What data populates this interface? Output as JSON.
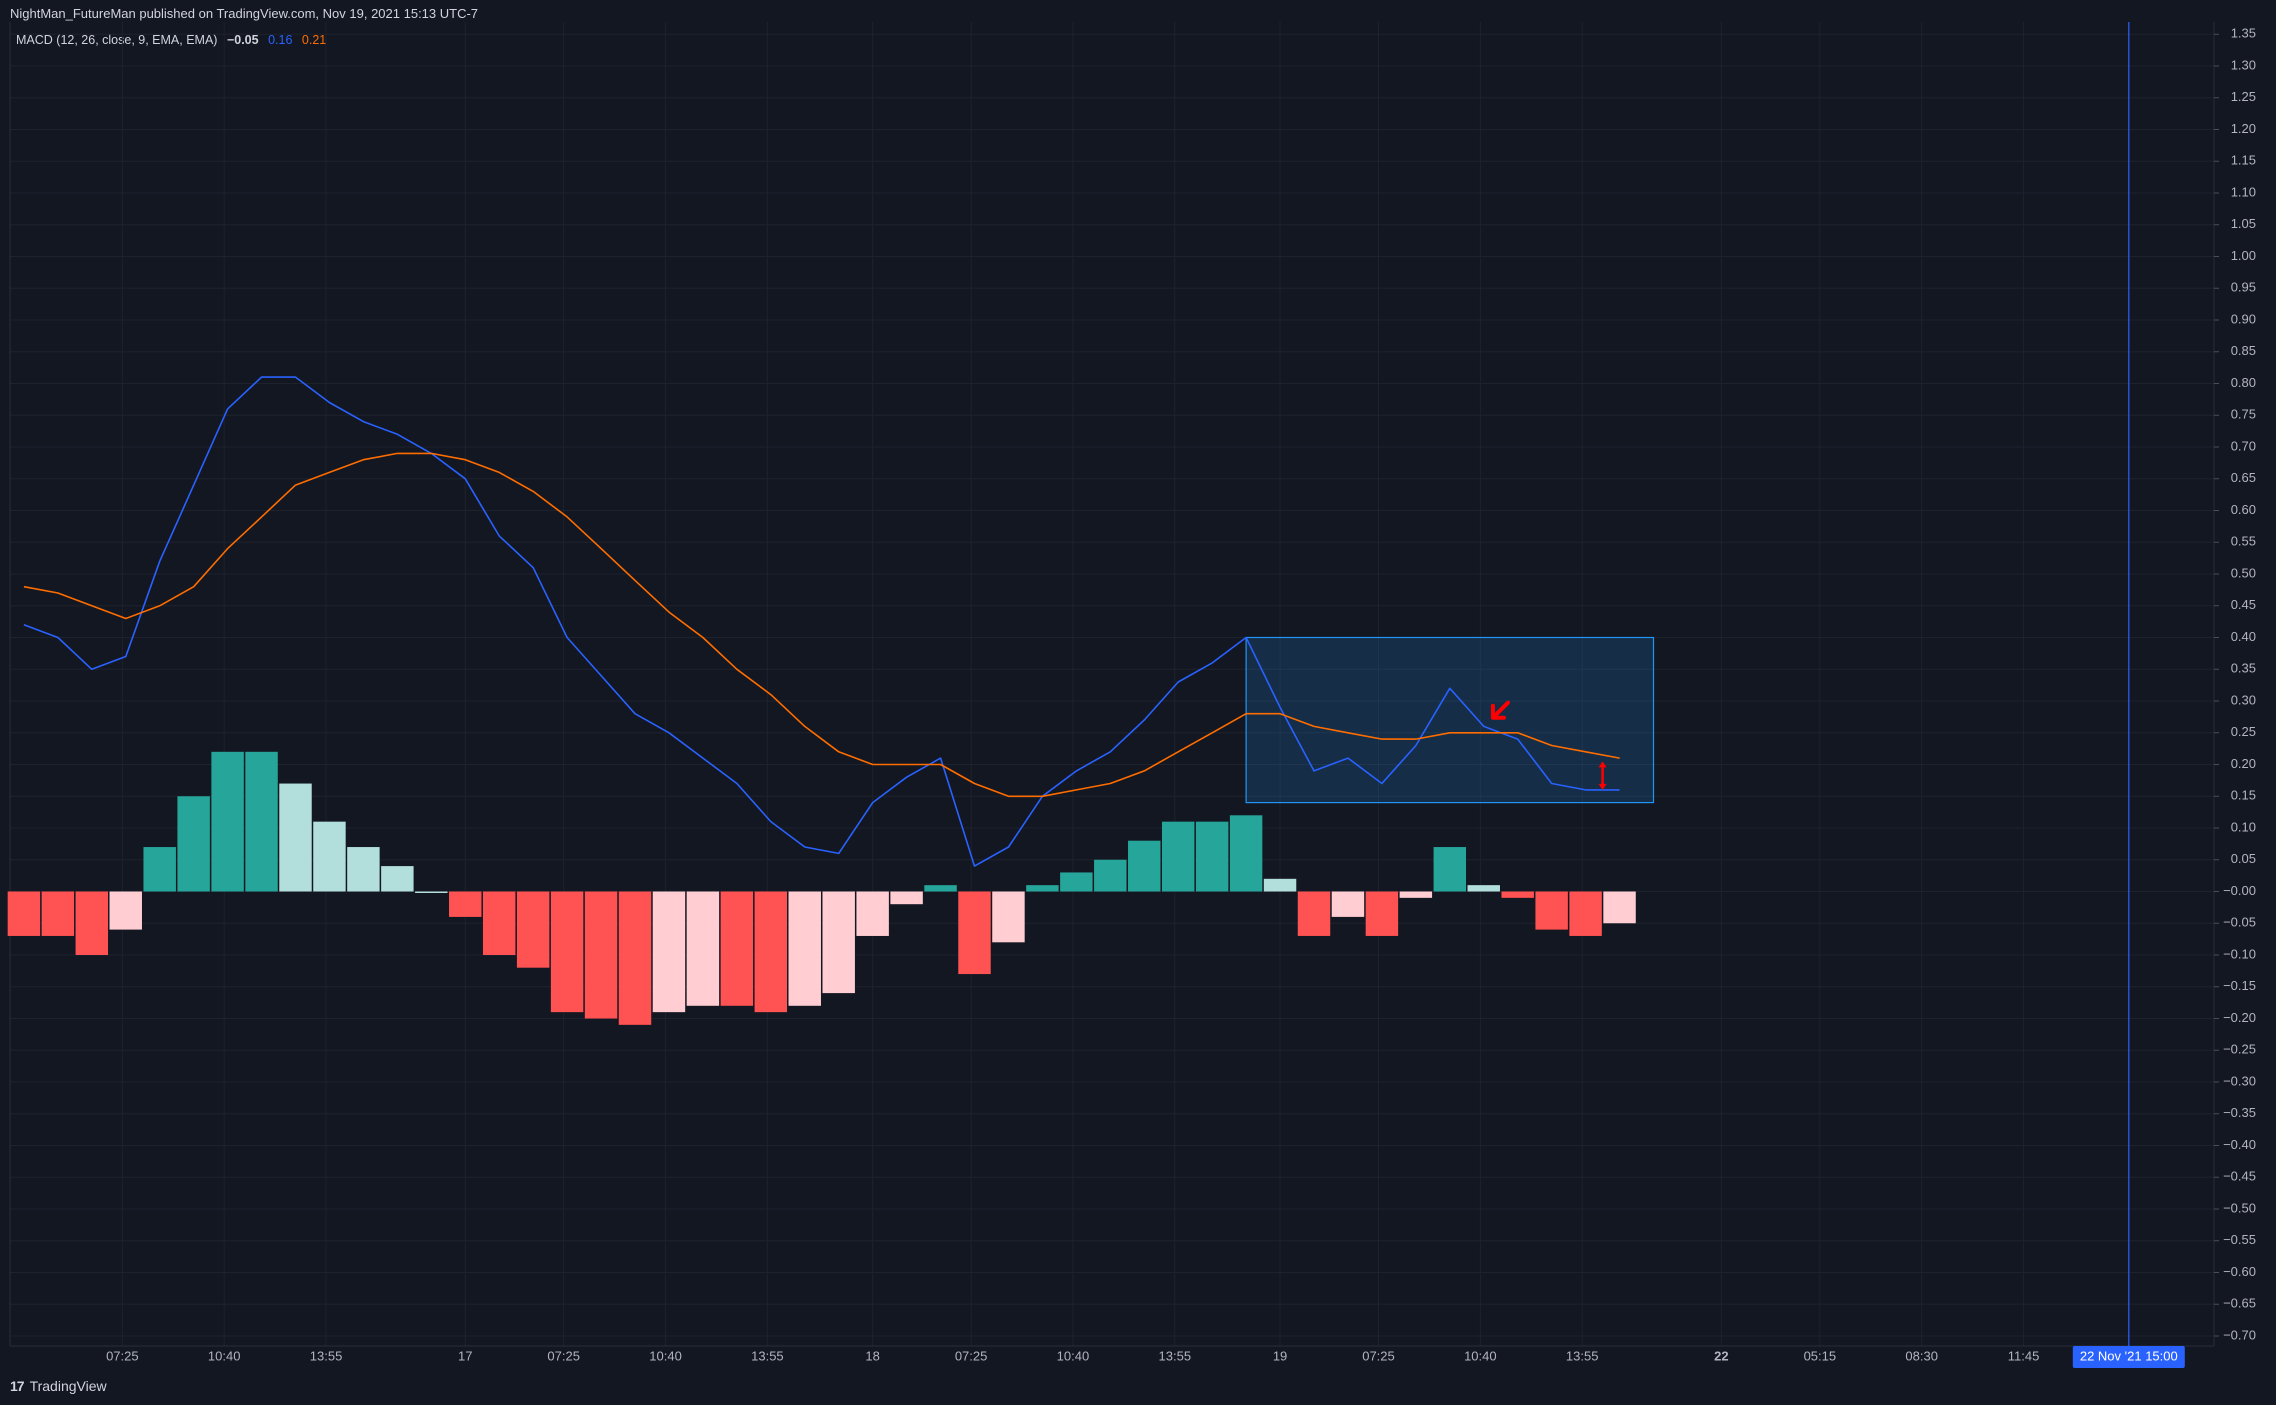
{
  "publisher": "NightMan_FutureMan published on TradingView.com, Nov 19, 2021 15:13 UTC-7",
  "legend": {
    "indicator": "MACD (12, 26, close, 9, EMA, EMA)",
    "hist_value": "−0.05",
    "macd_value": "0.16",
    "signal_value": "0.21"
  },
  "footer": {
    "logo_glyph": "17",
    "brand": "TradingView"
  },
  "crosshair_date_label": "22 Nov '21   15:00",
  "colors": {
    "background": "#131722",
    "macd_line": "#2962ff",
    "signal_line": "#ff6d00",
    "hist_pos_strong": "#26a69a",
    "hist_pos_weak": "#b2dfdb",
    "hist_neg_strong": "#ff5252",
    "hist_neg_weak": "#ffcdd2",
    "annotation": "#ff0000",
    "crosshair": "#2962ff",
    "highlight_box": "#2196f3"
  },
  "chart_data": {
    "type": "bar",
    "title": "MACD (12, 26, close, 9, EMA, EMA)",
    "ylim": [
      -0.72,
      1.36
    ],
    "yticks": [
      1.35,
      1.3,
      1.25,
      1.2,
      1.15,
      1.1,
      1.05,
      1.0,
      0.95,
      0.9,
      0.85,
      0.8,
      0.75,
      0.7,
      0.65,
      0.6,
      0.55,
      0.5,
      0.45,
      0.4,
      0.35,
      0.3,
      0.25,
      0.2,
      0.15,
      0.1,
      0.05,
      0.0,
      -0.05,
      -0.1,
      -0.15,
      -0.2,
      -0.25,
      -0.3,
      -0.35,
      -0.4,
      -0.45,
      -0.5,
      -0.55,
      -0.6,
      -0.65,
      -0.7
    ],
    "ytick_labels": [
      "1.35",
      "1.30",
      "1.25",
      "1.20",
      "1.15",
      "1.10",
      "1.05",
      "1.00",
      "0.95",
      "0.90",
      "0.85",
      "0.80",
      "0.75",
      "0.70",
      "0.65",
      "0.60",
      "0.55",
      "0.50",
      "0.45",
      "0.40",
      "0.35",
      "0.30",
      "0.25",
      "0.20",
      "0.15",
      "0.10",
      "0.05",
      "−0.00",
      "−0.05",
      "−0.10",
      "−0.15",
      "−0.20",
      "−0.25",
      "−0.30",
      "−0.35",
      "−0.40",
      "−0.45",
      "−0.50",
      "−0.55",
      "−0.60",
      "−0.65",
      "−0.70"
    ],
    "xticks": [
      {
        "bar": 2.9,
        "label": "07:25",
        "bold": false
      },
      {
        "bar": 5.9,
        "label": "10:40",
        "bold": false
      },
      {
        "bar": 8.9,
        "label": "13:55",
        "bold": false
      },
      {
        "bar": 13.0,
        "label": "17",
        "bold": false
      },
      {
        "bar": 15.9,
        "label": "07:25",
        "bold": false
      },
      {
        "bar": 18.9,
        "label": "10:40",
        "bold": false
      },
      {
        "bar": 21.9,
        "label": "13:55",
        "bold": false
      },
      {
        "bar": 25.0,
        "label": "18",
        "bold": false
      },
      {
        "bar": 27.9,
        "label": "07:25",
        "bold": false
      },
      {
        "bar": 30.9,
        "label": "10:40",
        "bold": false
      },
      {
        "bar": 33.9,
        "label": "13:55",
        "bold": false
      },
      {
        "bar": 37.0,
        "label": "19",
        "bold": false
      },
      {
        "bar": 39.9,
        "label": "07:25",
        "bold": false
      },
      {
        "bar": 42.9,
        "label": "10:40",
        "bold": false
      },
      {
        "bar": 45.9,
        "label": "13:55",
        "bold": false
      },
      {
        "bar": 50.0,
        "label": "22",
        "bold": true
      },
      {
        "bar": 52.9,
        "label": "05:15",
        "bold": false
      },
      {
        "bar": 55.9,
        "label": "08:30",
        "bold": false
      },
      {
        "bar": 58.9,
        "label": "11:45",
        "bold": false
      }
    ],
    "crosshair_bar": 62.0,
    "series": [
      {
        "name": "Histogram",
        "kind": "histogram",
        "values": [
          -0.07,
          -0.07,
          -0.1,
          -0.06,
          0.07,
          0.15,
          0.22,
          0.22,
          0.17,
          0.11,
          0.07,
          0.04,
          0.0,
          -0.04,
          -0.1,
          -0.12,
          -0.19,
          -0.2,
          -0.21,
          -0.19,
          -0.18,
          -0.18,
          -0.19,
          -0.18,
          -0.16,
          -0.07,
          -0.02,
          0.01,
          -0.13,
          -0.08,
          0.01,
          0.03,
          0.05,
          0.08,
          0.11,
          0.11,
          0.12,
          0.02,
          -0.07,
          -0.04,
          -0.07,
          -0.01,
          0.07,
          0.01,
          -0.01,
          -0.06,
          -0.07,
          -0.05
        ]
      },
      {
        "name": "MACD",
        "kind": "line",
        "values": [
          0.42,
          0.4,
          0.35,
          0.37,
          0.52,
          0.64,
          0.76,
          0.81,
          0.81,
          0.77,
          0.74,
          0.72,
          0.69,
          0.65,
          0.56,
          0.51,
          0.4,
          0.34,
          0.28,
          0.25,
          0.21,
          0.17,
          0.11,
          0.07,
          0.06,
          0.14,
          0.18,
          0.21,
          0.04,
          0.07,
          0.15,
          0.19,
          0.22,
          0.27,
          0.33,
          0.36,
          0.4,
          0.29,
          0.19,
          0.21,
          0.17,
          0.23,
          0.32,
          0.26,
          0.24,
          0.17,
          0.16,
          0.16
        ]
      },
      {
        "name": "Signal",
        "kind": "line",
        "values": [
          0.48,
          0.47,
          0.45,
          0.43,
          0.45,
          0.48,
          0.54,
          0.59,
          0.64,
          0.66,
          0.68,
          0.69,
          0.69,
          0.68,
          0.66,
          0.63,
          0.59,
          0.54,
          0.49,
          0.44,
          0.4,
          0.35,
          0.31,
          0.26,
          0.22,
          0.2,
          0.2,
          0.2,
          0.17,
          0.15,
          0.15,
          0.16,
          0.17,
          0.19,
          0.22,
          0.25,
          0.28,
          0.28,
          0.26,
          0.25,
          0.24,
          0.24,
          0.25,
          0.25,
          0.25,
          0.23,
          0.22,
          0.21
        ]
      }
    ],
    "annotations": {
      "box": {
        "bar_start": 36.0,
        "bar_end": 48.0,
        "y_top": 0.4,
        "y_bottom": 0.14
      },
      "arrow_at": {
        "bar": 43.3,
        "y": 0.28
      },
      "range_marker": {
        "bar": 46.5,
        "y_top": 0.205,
        "y_bottom": 0.16
      }
    }
  }
}
